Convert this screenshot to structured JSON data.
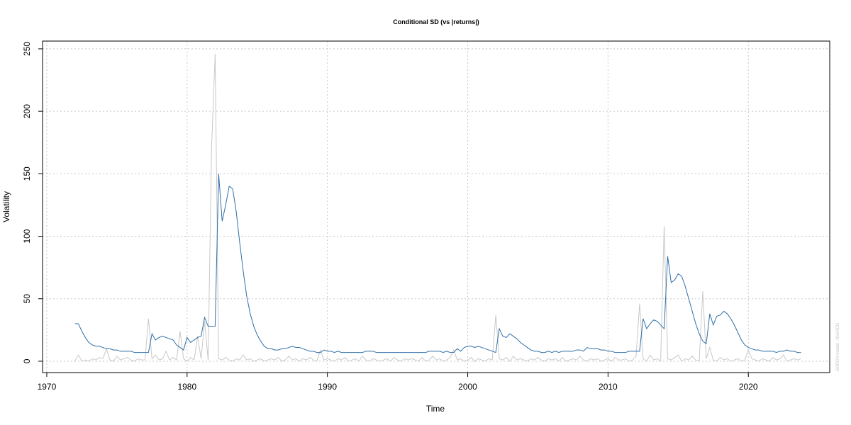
{
  "chart_data": {
    "type": "line",
    "title": "Conditional SD (vs |returns|)",
    "x_label": "Time",
    "y_label": "Volatility",
    "side_note": "GARCH model : fGARCH",
    "xlim": [
      1969.7,
      2025.8
    ],
    "ylim": [
      -9.1,
      256.2
    ],
    "xticks": [
      1970,
      1980,
      1990,
      2000,
      2010,
      2020
    ],
    "yticks": [
      0,
      50,
      100,
      150,
      200,
      250
    ],
    "grid": true,
    "x": [
      1972,
      1972.25,
      1972.5,
      1972.75,
      1973,
      1973.25,
      1973.5,
      1973.75,
      1974,
      1974.25,
      1974.5,
      1974.75,
      1975,
      1975.25,
      1975.5,
      1975.75,
      1976,
      1976.25,
      1976.5,
      1976.75,
      1977,
      1977.25,
      1977.5,
      1977.75,
      1978,
      1978.25,
      1978.5,
      1978.75,
      1979,
      1979.25,
      1979.5,
      1979.75,
      1980,
      1980.25,
      1980.5,
      1980.75,
      1981,
      1981.25,
      1981.5,
      1981.75,
      1982,
      1982.25,
      1982.5,
      1982.75,
      1983,
      1983.25,
      1983.5,
      1983.75,
      1984,
      1984.25,
      1984.5,
      1984.75,
      1985,
      1985.25,
      1985.5,
      1985.75,
      1986,
      1986.25,
      1986.5,
      1986.75,
      1987,
      1987.25,
      1987.5,
      1987.75,
      1988,
      1988.25,
      1988.5,
      1988.75,
      1989,
      1989.25,
      1989.5,
      1989.75,
      1990,
      1990.25,
      1990.5,
      1990.75,
      1991,
      1991.25,
      1991.5,
      1991.75,
      1992,
      1992.25,
      1992.5,
      1992.75,
      1993,
      1993.25,
      1993.5,
      1993.75,
      1994,
      1994.25,
      1994.5,
      1994.75,
      1995,
      1995.25,
      1995.5,
      1995.75,
      1996,
      1996.25,
      1996.5,
      1996.75,
      1997,
      1997.25,
      1997.5,
      1997.75,
      1998,
      1998.25,
      1998.5,
      1998.75,
      1999,
      1999.25,
      1999.5,
      1999.75,
      2000,
      2000.25,
      2000.5,
      2000.75,
      2001,
      2001.25,
      2001.5,
      2001.75,
      2002,
      2002.25,
      2002.5,
      2002.75,
      2003,
      2003.25,
      2003.5,
      2003.75,
      2004,
      2004.25,
      2004.5,
      2004.75,
      2005,
      2005.25,
      2005.5,
      2005.75,
      2006,
      2006.25,
      2006.5,
      2006.75,
      2007,
      2007.25,
      2007.5,
      2007.75,
      2008,
      2008.25,
      2008.5,
      2008.75,
      2009,
      2009.25,
      2009.5,
      2009.75,
      2010,
      2010.25,
      2010.5,
      2010.75,
      2011,
      2011.25,
      2011.5,
      2011.75,
      2012,
      2012.25,
      2012.5,
      2012.75,
      2013,
      2013.25,
      2013.5,
      2013.75,
      2014,
      2014.25,
      2014.5,
      2014.75,
      2015,
      2015.25,
      2015.5,
      2015.75,
      2016,
      2016.25,
      2016.5,
      2016.75,
      2017,
      2017.25,
      2017.5,
      2017.75,
      2018,
      2018.25,
      2018.5,
      2018.75,
      2019,
      2019.25,
      2019.5,
      2019.75,
      2020,
      2020.25,
      2020.5,
      2020.75,
      2021,
      2021.25,
      2021.5,
      2021.75,
      2022,
      2022.25,
      2022.5,
      2022.75,
      2023,
      2023.25,
      2023.5,
      2023.75
    ],
    "series": [
      {
        "color": "#c8c8c8",
        "values": [
          0,
          5,
          0,
          1,
          0,
          2,
          1,
          3,
          2,
          10,
          1,
          0,
          4,
          1,
          2,
          3,
          1,
          0,
          2,
          1,
          1,
          34,
          2,
          5,
          1,
          2,
          8,
          1,
          3,
          1,
          24,
          2,
          0,
          3,
          1,
          20,
          2,
          32,
          1,
          172,
          246,
          2,
          1,
          3,
          1,
          0,
          2,
          1,
          5,
          1,
          2,
          0,
          1,
          2,
          0,
          1,
          2,
          1,
          3,
          0,
          1,
          4,
          1,
          2,
          0,
          2,
          1,
          3,
          1,
          0,
          9,
          1,
          2,
          1,
          0,
          2,
          1,
          3,
          0,
          1,
          2,
          0,
          4,
          1,
          0,
          2,
          1,
          0,
          1,
          2,
          0,
          3,
          1,
          0,
          2,
          1,
          2,
          1,
          0,
          3,
          0,
          1,
          4,
          1,
          2,
          0,
          1,
          3,
          9,
          1,
          2,
          0,
          1,
          3,
          0,
          2,
          1,
          0,
          2,
          1,
          37,
          2,
          1,
          3,
          0,
          4,
          1,
          2,
          1,
          0,
          2,
          1,
          3,
          1,
          0,
          2,
          1,
          2,
          0,
          3,
          0,
          1,
          2,
          1,
          4,
          1,
          0,
          2,
          1,
          2,
          0,
          1,
          2,
          0,
          3,
          1,
          1,
          2,
          0,
          1,
          4,
          46,
          2,
          0,
          5,
          1,
          2,
          0,
          108,
          2,
          1,
          3,
          5,
          0,
          2,
          1,
          4,
          1,
          0,
          56,
          2,
          11,
          1,
          0,
          3,
          1,
          2,
          0,
          1,
          2,
          0,
          1,
          9,
          2,
          1,
          0,
          2,
          1,
          0,
          3,
          1,
          2,
          5,
          0,
          1,
          2,
          1,
          2
        ]
      },
      {
        "color": "#2e6fa7",
        "values": [
          30,
          30,
          24,
          19,
          15,
          13,
          12,
          12,
          11,
          10,
          10,
          9,
          9,
          8,
          8,
          8,
          8,
          7,
          7,
          7,
          7,
          7,
          22,
          17,
          19,
          20,
          19,
          18,
          17,
          13,
          11,
          9,
          19,
          15,
          17,
          19,
          20,
          35,
          28,
          28,
          28,
          150,
          112,
          125,
          140,
          138,
          120,
          95,
          72,
          52,
          38,
          28,
          21,
          16,
          12,
          10,
          10,
          9,
          9,
          10,
          10,
          11,
          12,
          11,
          11,
          10,
          9,
          8,
          8,
          7,
          7,
          9,
          8,
          8,
          7,
          8,
          7,
          7,
          7,
          7,
          7,
          7,
          7,
          8,
          8,
          8,
          7,
          7,
          7,
          7,
          7,
          7,
          7,
          7,
          7,
          7,
          7,
          7,
          7,
          7,
          7,
          8,
          8,
          8,
          8,
          7,
          8,
          7,
          7,
          10,
          8,
          11,
          12,
          12,
          11,
          12,
          11,
          10,
          9,
          8,
          7,
          26,
          20,
          19,
          22,
          20,
          18,
          15,
          13,
          11,
          9,
          8,
          8,
          7,
          7,
          8,
          7,
          8,
          7,
          8,
          8,
          8,
          8,
          9,
          9,
          8,
          11,
          10,
          10,
          10,
          9,
          9,
          8,
          8,
          7,
          7,
          7,
          7,
          8,
          8,
          8,
          8,
          34,
          26,
          30,
          33,
          32,
          29,
          26,
          84,
          63,
          65,
          70,
          68,
          60,
          50,
          40,
          30,
          22,
          16,
          14,
          38,
          29,
          36,
          37,
          40,
          38,
          34,
          29,
          23,
          17,
          13,
          11,
          10,
          9,
          9,
          8,
          8,
          8,
          8,
          7,
          8,
          8,
          9,
          8,
          8,
          7,
          7
        ]
      }
    ]
  }
}
